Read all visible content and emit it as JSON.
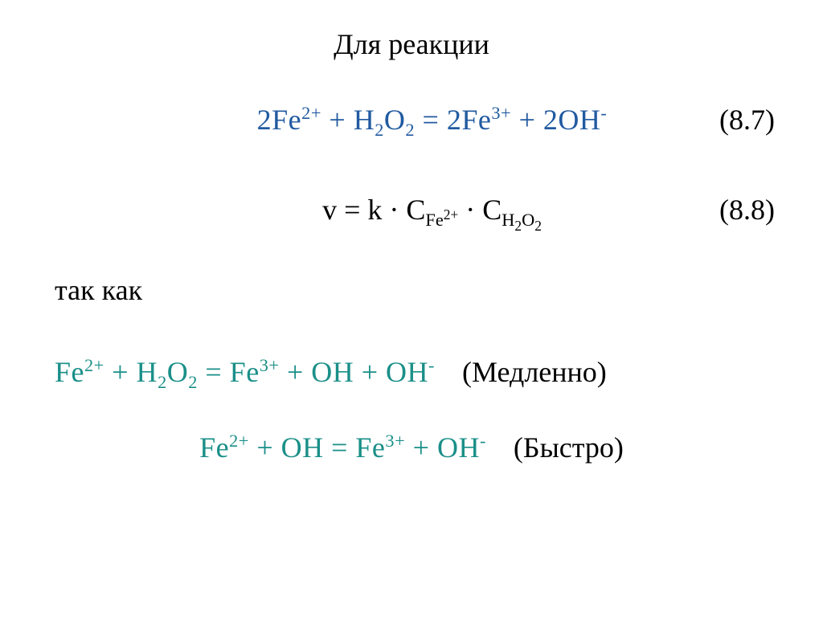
{
  "colors": {
    "blue": "#215aa0",
    "teal": "#1a8f88",
    "black": "#000000",
    "background": "#ffffff"
  },
  "typography": {
    "family": "Times New Roman",
    "body_size_pt": 27,
    "sup_sub_scale": 0.62
  },
  "title": "Для реакции",
  "eq1": {
    "lhs_a": "2Fe",
    "lhs_a_sup": "2+",
    "plus1": " + H",
    "h_sub": "2",
    "o": "O",
    "o_sub": "2",
    "eq": " = 2Fe",
    "rhs_a_sup": "3+",
    "plus2": " + 2OH",
    "oh_sup": "-",
    "number": "(8.7)",
    "color": "blue"
  },
  "rate": {
    "prefix": "v = k · C",
    "sub1_main": "Fe",
    "sub1_sup": "2+",
    "mid": " · C",
    "sub2_main": "H",
    "sub2_a": "2",
    "sub2_o": "O",
    "sub2_b": "2",
    "number": "(8.8)"
  },
  "since": "так как",
  "eq3": {
    "lhs_a": "Fe",
    "lhs_a_sup": "2+",
    "plus1": " + H",
    "h_sub": "2",
    "o": "O",
    "o_sub": "2",
    "eq": " = Fe",
    "rhs_a_sup": "3+",
    "plus2": " + OH + OH",
    "oh_sup": "-",
    "annot": "(Медленно)",
    "color": "teal"
  },
  "eq4": {
    "lhs_a": "Fe",
    "lhs_a_sup": "2+",
    "plus1": " + OH = Fe",
    "rhs_a_sup": "3+",
    "plus2": " + OH",
    "oh_sup": "-",
    "annot": "(Быстро)",
    "color": "teal"
  }
}
